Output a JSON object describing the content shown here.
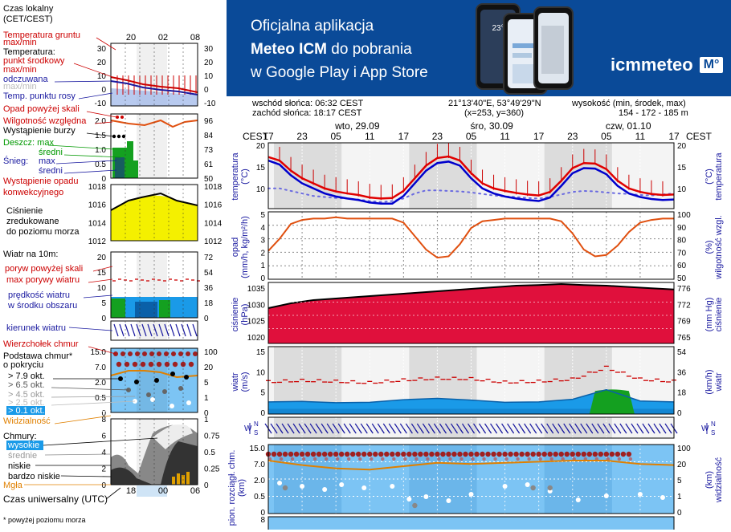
{
  "banner": {
    "line1": "Oficjalna aplikacja",
    "line2a": "Meteo ICM",
    "line2b": " do pobrania",
    "line3": "w Google Play i App Store",
    "logo": "icmmeteo",
    "logo_box": "M°",
    "phone_temp": "23°"
  },
  "legend": {
    "tz": [
      "Czas lokalny",
      "(CET/CEST)"
    ],
    "top_hours": [
      "20",
      "02",
      "08"
    ],
    "temp_panel": {
      "labels": [
        {
          "text": "Temperatura gruntu",
          "color": "#cc0000"
        },
        {
          "text": "max/min",
          "color": "#cc0000"
        },
        {
          "text": "Temperatura:",
          "color": "#000000"
        },
        {
          "text": "punkt środkowy",
          "color": "#cc0000"
        },
        {
          "text": "max/min",
          "color": "#cc0000"
        },
        {
          "text": "odczuwana",
          "color": "#1a1aa0"
        },
        {
          "text": "max/min",
          "color": "#bbbbbb"
        },
        {
          "text": "Temp. punktu rosy",
          "color": "#1a1aa0"
        }
      ],
      "left_ticks": [
        "30",
        "20",
        "10",
        "0",
        "-10"
      ],
      "right_ticks": [
        "30",
        "20",
        "10",
        "0",
        "-10"
      ]
    },
    "precip_panel": {
      "labels": [
        {
          "text": "Opad powyżej skali",
          "color": "#cc0000"
        },
        {
          "text": "Wilgotność względna",
          "color": "#cc0000"
        },
        {
          "text": "Wystąpienie burzy",
          "color": "#000000"
        },
        {
          "text": "Deszcz: max",
          "color": "#009900"
        },
        {
          "text": "średni",
          "color": "#009900"
        },
        {
          "text": "Śnieg:",
          "color": "#1a1aa0"
        },
        {
          "text": "max",
          "color": "#1a1aa0"
        },
        {
          "text": "średni",
          "color": "#1a1aa0"
        },
        {
          "text": "Wystąpienie opadu",
          "color": "#cc0000"
        },
        {
          "text": "konwekcyjnego",
          "color": "#cc0000"
        }
      ],
      "left_ticks": [
        "2.0",
        "1.5",
        "1.0",
        "0.5",
        "0"
      ],
      "right_ticks": [
        "96",
        "84",
        "73",
        "61",
        "50"
      ]
    },
    "pressure_panel": {
      "labels": [
        "Ciśnienie",
        "zredukowane",
        "do poziomu morza"
      ],
      "left_ticks": [
        "1018",
        "1016",
        "1014",
        "1012"
      ],
      "right_ticks": [
        "1018",
        "1016",
        "1014",
        "1012"
      ]
    },
    "wind_panel": {
      "labels": [
        {
          "text": "Wiatr na 10m:",
          "color": "#000000"
        },
        {
          "text": "poryw powyżej skali",
          "color": "#cc0000"
        },
        {
          "text": "max porywy wiatru",
          "color": "#cc0000"
        },
        {
          "text": "prędkość wiatru",
          "color": "#1a1aa0"
        },
        {
          "text": "w środku obszaru",
          "color": "#1a1aa0"
        }
      ],
      "left_ticks": [
        "20",
        "15",
        "10",
        "5",
        "0"
      ],
      "right_ticks": [
        "72",
        "54",
        "36",
        "18",
        "0"
      ]
    },
    "winddir_label": "kierunek wiatru",
    "clouds_panel": {
      "labels": [
        {
          "text": "Wierzchołek chmur",
          "color": "#cc0000"
        },
        {
          "text": "Podstawa chmur*",
          "color": "#000000"
        },
        {
          "text": "o pokryciu",
          "color": "#000000"
        },
        {
          "text": "> 7.9 okt.",
          "color": "#000000"
        },
        {
          "text": "> 6.5 okt.",
          "color": "#555555"
        },
        {
          "text": "> 4.5 okt.",
          "color": "#999999"
        },
        {
          "text": "> 2.5 okt.",
          "color": "#bbbbbb"
        },
        {
          "text": "> 0.1 okt.",
          "color": "#ffffff"
        },
        {
          "text": "Widzialność",
          "color": "#e08000"
        }
      ],
      "left_ticks": [
        "15.0",
        "7.0",
        "2.0",
        "0.5",
        "0"
      ],
      "right_ticks": [
        "100",
        "20",
        "5",
        "1",
        "0"
      ]
    },
    "cloud_layers_panel": {
      "labels": [
        {
          "text": "Chmury:",
          "color": "#000000"
        },
        {
          "text": "wysokie",
          "color": "#ffffff"
        },
        {
          "text": "średnie",
          "color": "#999999"
        },
        {
          "text": "niskie",
          "color": "#000000"
        },
        {
          "text": "bardzo niskie",
          "color": "#000000"
        },
        {
          "text": "Mgła",
          "color": "#e08000"
        }
      ],
      "left_ticks": [
        "8",
        "6",
        "4",
        "2",
        "0"
      ],
      "right_ticks": [
        "1",
        "0.75",
        "0.5",
        "0.25",
        "0"
      ]
    },
    "utc_hours": [
      "18",
      "00",
      "06"
    ],
    "utc_label": "Czas uniwersalny (UTC)",
    "footnote": "* powyżej poziomu morza"
  },
  "header": {
    "sunrise": "wschód słońca: 06:32 CEST",
    "sunset": "zachód słońca: 18:17 CEST",
    "coords": "21°13'40\"E, 53°49'29\"N",
    "grid": "(x=253,  y=360)",
    "height_label": "wysokość (min, środek, max)",
    "height_values": "154 - 172 - 185 m"
  },
  "timeline": {
    "tz_left": "CEST",
    "tz_right": "CEST",
    "days": [
      {
        "label": "wto, 29.09",
        "hour": 11
      },
      {
        "label": "śro, 30.09",
        "hour": 35
      },
      {
        "label": "czw, 01.10",
        "hour": 59
      }
    ],
    "hour_labels": [
      "17",
      "23",
      "05",
      "11",
      "17",
      "23",
      "05",
      "11",
      "17",
      "23",
      "05",
      "11",
      "17"
    ],
    "start_hour_label": "17"
  },
  "panels": {
    "temperature": {
      "ylabel_left": [
        "temperatura",
        "(°C)"
      ],
      "ylabel_right": [
        "(°C)",
        "temperatura"
      ],
      "left_ticks": [
        "20",
        "15",
        "10"
      ],
      "right_ticks": [
        "20",
        "15",
        "10"
      ]
    },
    "precip": {
      "ylabel_left": [
        "opad",
        "(mm/h, kg/m²/h)"
      ],
      "ylabel_right": [
        "(%)",
        "wilgotność wzgl."
      ],
      "left_ticks": [
        "5",
        "4",
        "3",
        "2",
        "1",
        "0"
      ],
      "right_ticks": [
        "100",
        "90",
        "80",
        "70",
        "60",
        "50"
      ]
    },
    "pressure": {
      "ylabel_left": [
        "ciśnienie",
        "(hPa)"
      ],
      "ylabel_right": [
        "(mm Hg)",
        "ciśnienie"
      ],
      "left_ticks": [
        "1035",
        "1030",
        "1025",
        "1020"
      ],
      "right_ticks": [
        "776",
        "772",
        "769",
        "765"
      ]
    },
    "wind": {
      "ylabel_left": [
        "wiatr",
        "(m/s)"
      ],
      "ylabel_right": [
        "(km/h)",
        "wiatr"
      ],
      "left_ticks": [
        "15",
        "10",
        "5",
        "0"
      ],
      "right_ticks": [
        "54",
        "36",
        "18",
        "0"
      ]
    },
    "winddir": {
      "label_left": "W",
      "label_right": "W"
    },
    "clouds": {
      "ylabel_left": [
        "pion. rozciągł. chm.",
        "(km)"
      ],
      "ylabel_right": [
        "(km)",
        "widzialność"
      ],
      "left_ticks": [
        "15.0",
        "7.0",
        "2.0",
        "0.5",
        "0"
      ],
      "right_ticks": [
        "100",
        "20",
        "5",
        "1",
        "0"
      ]
    },
    "bottom": {
      "left_ticks": [
        "8"
      ]
    }
  },
  "colors": {
    "temp_red": "#e00000",
    "temp_blue": "#0000cc",
    "dew": "#6a6ae0",
    "humidity": "#e05010",
    "pressure_fill": "#e0103c",
    "pressure_small_fill": "#f4f000",
    "wind_light": "#1a9ae8",
    "wind_dark": "#0a60a8",
    "wind_green": "#14a020",
    "gust": "#cc0000",
    "cloud_bg": "#7cc4f4",
    "visibility": "#e08000",
    "banner_bg": "#0a4a98"
  },
  "chart_data": [
    {
      "type": "line",
      "title": "temperatura (°C)",
      "x_unit": "hours from 29.09 17:00 CEST",
      "x": [
        0,
        2,
        4,
        6,
        8,
        10,
        12,
        14,
        16,
        18,
        20,
        22,
        24,
        26,
        28,
        30,
        32,
        34,
        36,
        38,
        40,
        42,
        44,
        46,
        48,
        50,
        52,
        54,
        56,
        58,
        60,
        62,
        64,
        66,
        68,
        70,
        72
      ],
      "series": [
        {
          "name": "max/min",
          "values": [
            17.8,
            17,
            15,
            13.5,
            12.5,
            11.5,
            11,
            10.6,
            10.2,
            9.7,
            9.5,
            9.6,
            11,
            13.5,
            16,
            17.6,
            17.8,
            17,
            14.5,
            12.5,
            11.5,
            11,
            10.6,
            10.3,
            10.2,
            10.8,
            13,
            15.5,
            16.6,
            16.5,
            15.5,
            13,
            11.5,
            10.8,
            10.4,
            10.2,
            10.2
          ]
        },
        {
          "name": "punkt środkowy",
          "values": [
            17.2,
            16.5,
            14.5,
            13,
            12,
            11,
            10.4,
            10,
            9.7,
            9.2,
            9,
            9.1,
            10.5,
            13,
            15.5,
            17,
            17.3,
            16.5,
            14,
            12,
            11,
            10.5,
            10.1,
            9.8,
            9.6,
            10.3,
            12.5,
            15,
            16,
            15.9,
            14.8,
            12.5,
            11,
            10.3,
            9.9,
            9.7,
            9.8
          ]
        },
        {
          "name": "odczuwana",
          "values": [
            16.5,
            15.7,
            13.6,
            12,
            11,
            10,
            9.4,
            9,
            8.7,
            8.2,
            8,
            8,
            9.5,
            12,
            14.5,
            16,
            16.3,
            15.5,
            13,
            11,
            10,
            9.4,
            9,
            8.7,
            8.5,
            9.2,
            11.5,
            14,
            15,
            14.9,
            13.8,
            11.5,
            10,
            9.3,
            8.9,
            8.7,
            8.8
          ]
        },
        {
          "name": "Temp. punktu rosy",
          "values": [
            11,
            11,
            10.5,
            10,
            9.5,
            9.3,
            9.1,
            9,
            8.8,
            8.5,
            8.3,
            8.5,
            9,
            10,
            10.6,
            10.6,
            10.5,
            10.4,
            10.2,
            9.9,
            9.6,
            9.4,
            9.3,
            9.1,
            9,
            9.3,
            9.8,
            10.3,
            10.5,
            10.4,
            10.2,
            10,
            9.9,
            9.7,
            9.6,
            9.8,
            10
          ]
        }
      ],
      "ylim": [
        7,
        20
      ]
    },
    {
      "type": "line",
      "title": "wilgotność wzgl. (%)",
      "x": [
        0,
        2,
        4,
        6,
        8,
        10,
        12,
        14,
        16,
        18,
        20,
        22,
        24,
        26,
        28,
        30,
        32,
        34,
        36,
        38,
        40,
        42,
        44,
        46,
        48,
        50,
        52,
        54,
        56,
        58,
        60,
        62,
        64,
        66,
        68,
        70,
        72
      ],
      "series": [
        {
          "name": "wilgotność",
          "values": [
            71,
            80,
            91,
            94,
            95,
            95,
            96,
            95,
            95,
            95,
            95,
            95,
            92,
            82,
            72,
            66,
            67,
            76,
            88,
            93,
            94,
            95,
            95,
            95,
            95,
            95,
            93,
            84,
            72,
            67,
            68,
            75,
            85,
            92,
            94,
            95,
            95
          ]
        }
      ],
      "ylim": [
        50,
        100
      ]
    },
    {
      "type": "area",
      "title": "ciśnienie (hPa)",
      "x": [
        0,
        4,
        8,
        12,
        16,
        20,
        24,
        28,
        32,
        36,
        40,
        44,
        48,
        52,
        56,
        60,
        64,
        68,
        72
      ],
      "values": [
        1029,
        1030.5,
        1031.5,
        1032,
        1032.5,
        1033,
        1033.5,
        1034,
        1034.5,
        1035,
        1035.5,
        1036,
        1036.2,
        1036.5,
        1036.2,
        1036,
        1035.6,
        1035.2,
        1034.8
      ],
      "ylim": [
        1018,
        1037
      ]
    },
    {
      "type": "area",
      "title": "wiatr (m/s)",
      "x": [
        0,
        6,
        12,
        18,
        24,
        30,
        36,
        42,
        48,
        54,
        60,
        66,
        72
      ],
      "series": [
        {
          "name": "prędkość wiatru",
          "values": [
            2.8,
            2.9,
            2.6,
            2.7,
            3.3,
            3.6,
            3.2,
            2.7,
            2.8,
            3.4,
            5.6,
            3.0,
            2.8
          ]
        },
        {
          "name": "max porywy wiatru",
          "values": [
            7.4,
            7.7,
            7.5,
            7.2,
            7.8,
            8.2,
            8.1,
            7.3,
            7.5,
            8.0,
            10.7,
            8.0,
            7.5
          ]
        }
      ],
      "ylim": [
        0,
        15
      ]
    },
    {
      "type": "line",
      "title": "widzialność (km)",
      "x": [
        0,
        6,
        12,
        18,
        24,
        30,
        36,
        42,
        48,
        54,
        60,
        66,
        72
      ],
      "values": [
        20,
        16,
        13,
        12,
        15,
        18,
        17,
        18,
        19,
        20,
        20,
        17,
        16
      ]
    }
  ]
}
